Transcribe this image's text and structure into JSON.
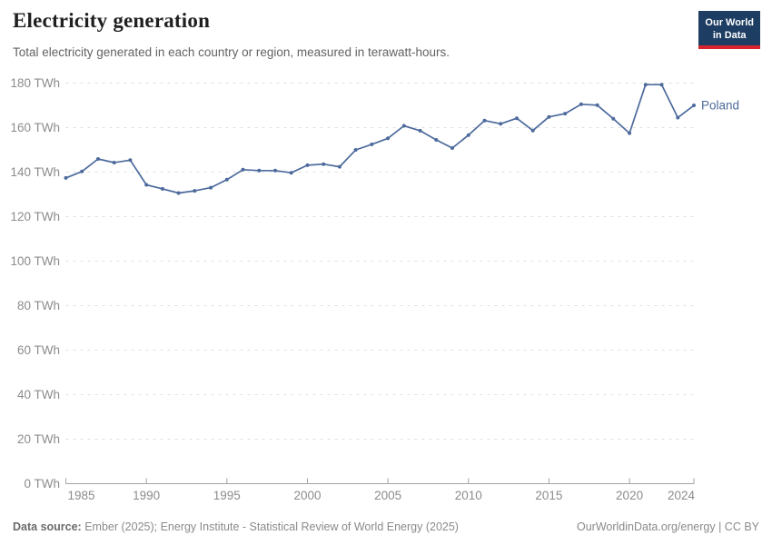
{
  "header": {
    "title": "Electricity generation",
    "subtitle": "Total electricity generated in each country or region, measured in terawatt-hours.",
    "logo": {
      "line1": "Our World",
      "line2": "in Data"
    }
  },
  "chart_data": {
    "type": "line",
    "title": "Electricity generation",
    "entity": "Poland",
    "unit": "TWh",
    "xlabel": "",
    "ylabel": "",
    "xlim": [
      1985,
      2024
    ],
    "ylim": [
      0,
      180
    ],
    "grid": "horizontal-dashed",
    "legend_position": "end-of-line-label",
    "line_color": "#4C6A9C",
    "x": [
      1985,
      1986,
      1987,
      1988,
      1989,
      1990,
      1991,
      1992,
      1993,
      1994,
      1995,
      1996,
      1997,
      1998,
      1999,
      2000,
      2001,
      2002,
      2003,
      2004,
      2005,
      2006,
      2007,
      2008,
      2009,
      2010,
      2011,
      2012,
      2013,
      2014,
      2015,
      2016,
      2017,
      2018,
      2019,
      2020,
      2021,
      2022,
      2023,
      2024
    ],
    "series": [
      {
        "name": "Poland",
        "values": [
          137.4,
          140.3,
          145.9,
          144.3,
          145.4,
          134.3,
          132.5,
          130.6,
          131.6,
          133.0,
          136.6,
          141.1,
          140.7,
          140.7,
          139.7,
          143.1,
          143.6,
          142.4,
          150.0,
          152.5,
          155.2,
          160.8,
          158.6,
          154.5,
          150.8,
          156.6,
          163.2,
          161.7,
          164.2,
          158.7,
          164.8,
          166.3,
          170.5,
          170.1,
          164.0,
          157.5,
          179.3,
          179.3,
          164.5,
          170.0
        ]
      }
    ],
    "xticks": [
      {
        "value": 1985,
        "label": "1985"
      },
      {
        "value": 1990,
        "label": "1990"
      },
      {
        "value": 1995,
        "label": "1995"
      },
      {
        "value": 2000,
        "label": "2000"
      },
      {
        "value": 2005,
        "label": "2005"
      },
      {
        "value": 2010,
        "label": "2010"
      },
      {
        "value": 2015,
        "label": "2015"
      },
      {
        "value": 2020,
        "label": "2020"
      },
      {
        "value": 2024,
        "label": "2024"
      }
    ],
    "yticks": [
      {
        "value": 0,
        "label": "0 TWh"
      },
      {
        "value": 20,
        "label": "20 TWh"
      },
      {
        "value": 40,
        "label": "40 TWh"
      },
      {
        "value": 60,
        "label": "60 TWh"
      },
      {
        "value": 80,
        "label": "80 TWh"
      },
      {
        "value": 100,
        "label": "100 TWh"
      },
      {
        "value": 120,
        "label": "120 TWh"
      },
      {
        "value": 140,
        "label": "140 TWh"
      },
      {
        "value": 160,
        "label": "160 TWh"
      },
      {
        "value": 180,
        "label": "180 TWh"
      }
    ]
  },
  "colors": {
    "line": "#4C6A9C",
    "entity_label": "#4C6A9C",
    "gridline": "#e0e0e0",
    "axis": "#a3a3a3",
    "tick_label": "#8c8c8c",
    "logo_bg": "#1d3d63",
    "logo_red": "#d8252d"
  },
  "footer": {
    "source_label": "Data source:",
    "source_text": " Ember (2025); Energy Institute - Statistical Review of World Energy (2025)",
    "credit": "OurWorldinData.org/energy | CC BY"
  }
}
